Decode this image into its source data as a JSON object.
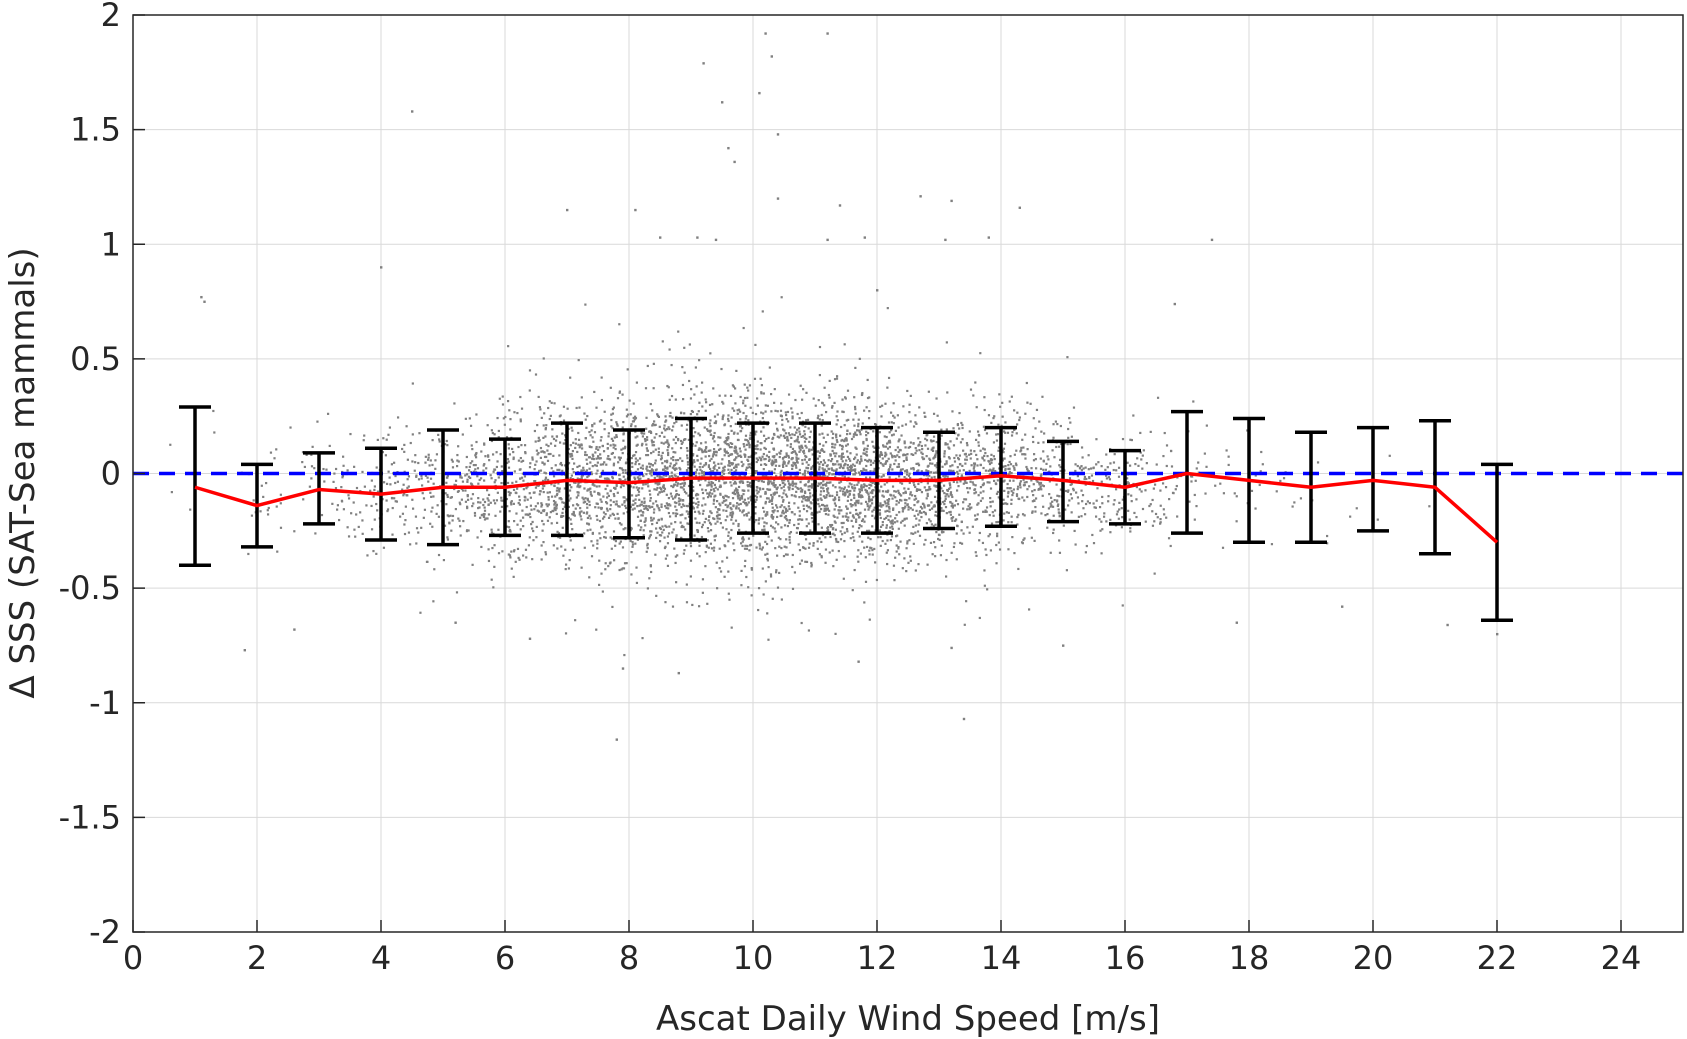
{
  "chart_data": {
    "type": "scatter",
    "xlabel": "Ascat Daily Wind Speed [m/s]",
    "ylabel": "Δ SSS (SAT-Sea mammals)",
    "xlim": [
      0,
      25
    ],
    "ylim": [
      -2,
      2
    ],
    "x_ticks": [
      0,
      2,
      4,
      6,
      8,
      10,
      12,
      14,
      16,
      18,
      20,
      22,
      24
    ],
    "y_ticks": [
      -2,
      -1.5,
      -1,
      -0.5,
      0,
      0.5,
      1,
      1.5,
      2
    ],
    "y_tick_labels": [
      "-2",
      "-1.5",
      "-1",
      "-0.5",
      "0",
      "0.5",
      "1",
      "1.5",
      "2"
    ],
    "grid": true,
    "colors": {
      "scatter": "#808080",
      "mean_line": "#ff0000",
      "zero_line": "#0000ff",
      "error_bars": "#000000",
      "grid": "#d9d9d9",
      "axes": "#262626"
    },
    "zero_line": {
      "y": 0,
      "style": "dashed"
    },
    "scatter_cloud_std_by_wind": [
      [
        1,
        0.18
      ],
      [
        2,
        0.14
      ],
      [
        3,
        0.12
      ],
      [
        4,
        0.13
      ],
      [
        5,
        0.15
      ],
      [
        6,
        0.16
      ],
      [
        7,
        0.17
      ],
      [
        8,
        0.17
      ],
      [
        9,
        0.18
      ],
      [
        10,
        0.18
      ],
      [
        11,
        0.17
      ],
      [
        12,
        0.16
      ],
      [
        13,
        0.15
      ],
      [
        14,
        0.15
      ],
      [
        15,
        0.13
      ],
      [
        16,
        0.12
      ],
      [
        17,
        0.14
      ],
      [
        18,
        0.14
      ],
      [
        19,
        0.13
      ],
      [
        20,
        0.12
      ],
      [
        21,
        0.12
      ],
      [
        22,
        0.1
      ]
    ],
    "scatter_outliers": [
      [
        1.1,
        0.77
      ],
      [
        1.15,
        0.75
      ],
      [
        4.5,
        1.58
      ],
      [
        9.2,
        1.79
      ],
      [
        9.5,
        1.62
      ],
      [
        9.6,
        1.42
      ],
      [
        9.7,
        1.36
      ],
      [
        10.1,
        1.66
      ],
      [
        10.2,
        1.92
      ],
      [
        10.3,
        1.82
      ],
      [
        10.4,
        1.48
      ],
      [
        11.2,
        1.92
      ],
      [
        8.1,
        1.15
      ],
      [
        7.0,
        1.15
      ],
      [
        10.4,
        1.2
      ],
      [
        11.4,
        1.17
      ],
      [
        12.7,
        1.21
      ],
      [
        13.2,
        1.19
      ],
      [
        14.3,
        1.16
      ],
      [
        8.5,
        1.03
      ],
      [
        9.1,
        1.03
      ],
      [
        9.4,
        1.02
      ],
      [
        11.2,
        1.02
      ],
      [
        11.8,
        1.03
      ],
      [
        13.1,
        1.02
      ],
      [
        13.8,
        1.03
      ],
      [
        17.4,
        1.02
      ],
      [
        16.8,
        0.74
      ],
      [
        12.0,
        0.8
      ],
      [
        4.0,
        0.9
      ],
      [
        8.8,
        -0.87
      ],
      [
        7.9,
        -0.85
      ],
      [
        11.7,
        -0.82
      ],
      [
        13.2,
        -0.76
      ],
      [
        15.0,
        -0.75
      ],
      [
        13.4,
        -1.07
      ],
      [
        7.8,
        -1.16
      ],
      [
        1.8,
        -0.77
      ],
      [
        2.6,
        -0.68
      ],
      [
        21.2,
        -0.66
      ],
      [
        22.0,
        -0.7
      ],
      [
        19.5,
        -0.58
      ],
      [
        17.8,
        -0.65
      ],
      [
        5.2,
        -0.65
      ],
      [
        6.4,
        -0.72
      ]
    ],
    "series": [
      {
        "name": "",
        "type": "line",
        "x": [
          1,
          2,
          3,
          4,
          5,
          6,
          7,
          8,
          9,
          10,
          11,
          12,
          13,
          14,
          15,
          16,
          17,
          18,
          19,
          20,
          21,
          22
        ],
        "y": [
          -0.06,
          -0.14,
          -0.07,
          -0.09,
          -0.06,
          -0.06,
          -0.03,
          -0.04,
          -0.02,
          -0.02,
          -0.02,
          -0.03,
          -0.03,
          -0.01,
          -0.03,
          -0.06,
          0.0,
          -0.03,
          -0.06,
          -0.03,
          -0.06,
          -0.3
        ],
        "error_low": [
          -0.4,
          -0.32,
          -0.22,
          -0.29,
          -0.31,
          -0.27,
          -0.27,
          -0.28,
          -0.29,
          -0.26,
          -0.26,
          -0.26,
          -0.24,
          -0.23,
          -0.21,
          -0.22,
          -0.26,
          -0.3,
          -0.3,
          -0.25,
          -0.35,
          -0.64
        ],
        "error_high": [
          0.29,
          0.04,
          0.09,
          0.11,
          0.19,
          0.15,
          0.22,
          0.19,
          0.24,
          0.22,
          0.22,
          0.2,
          0.18,
          0.2,
          0.14,
          0.1,
          0.27,
          0.24,
          0.18,
          0.2,
          0.23,
          0.04
        ]
      }
    ]
  }
}
